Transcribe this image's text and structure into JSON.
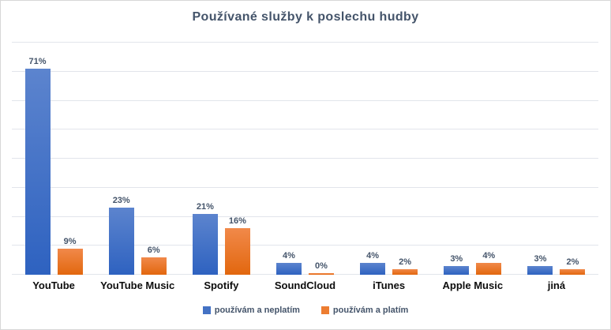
{
  "title": "Používané služby k poslechu hudby",
  "chart_data": {
    "type": "bar",
    "title": "Používané služby k poslechu hudby",
    "categories": [
      "YouTube",
      "YouTube Music",
      "Spotify",
      "SoundCloud",
      "iTunes",
      "Apple Music",
      "jiná"
    ],
    "series": [
      {
        "name": "používám a neplatím",
        "color": "#4472c4",
        "gradient_top": "#5c84ce",
        "gradient_bottom": "#2e62c0",
        "values": [
          71,
          23,
          21,
          4,
          4,
          3,
          3
        ]
      },
      {
        "name": "používám a platím",
        "color": "#ed7d31",
        "gradient_top": "#f1894a",
        "gradient_bottom": "#e2670e",
        "values": [
          9,
          6,
          16,
          0,
          2,
          4,
          2
        ]
      }
    ],
    "value_suffix": "%",
    "xlabel": "",
    "ylabel": "",
    "ylim": [
      0,
      80
    ],
    "gridline_interval": 10,
    "grid": true,
    "data_labels": true,
    "legend_position": "bottom"
  },
  "colors": {
    "title_text": "#44546a",
    "data_label_text": "#44546a",
    "category_text": "#0d0d0d",
    "gridline": "#e2e5eb",
    "border": "#d7d7d7",
    "background": "#ffffff"
  }
}
